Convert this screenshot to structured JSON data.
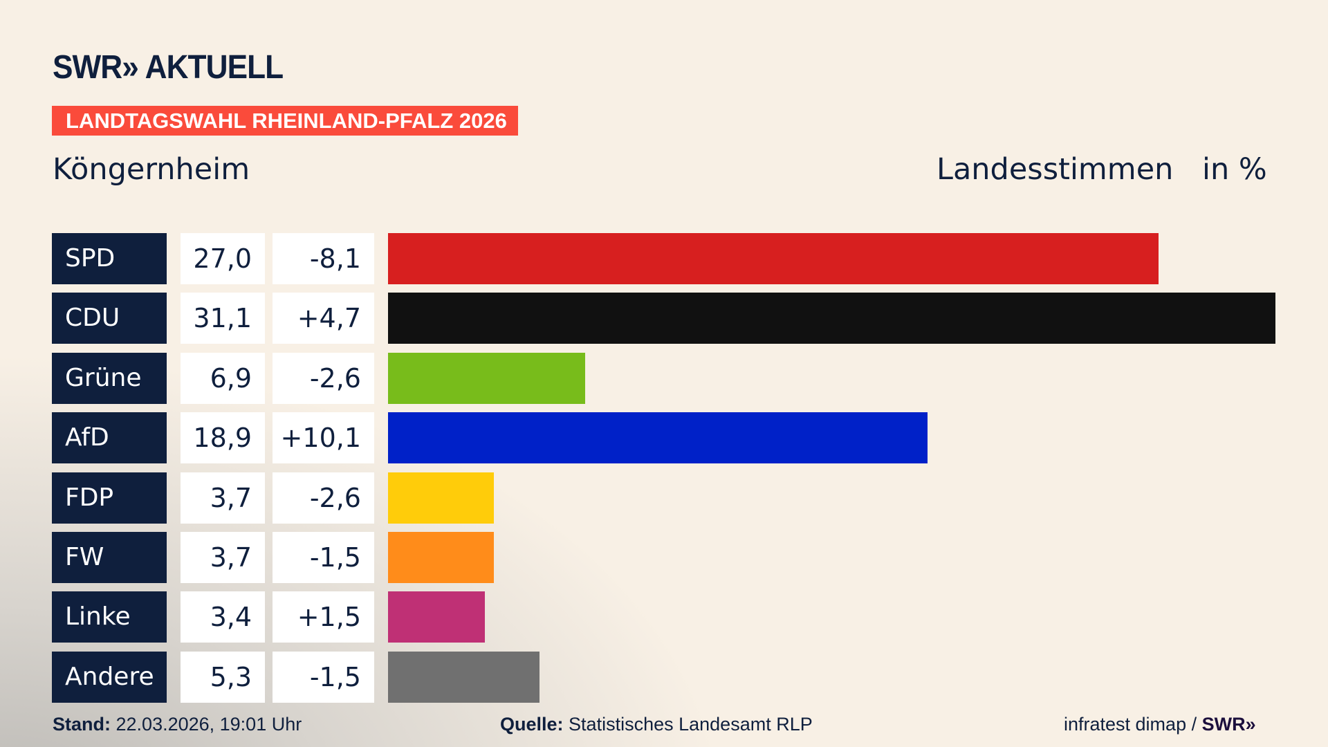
{
  "header": {
    "logo_text": "SWR» AKTUELL",
    "banner": "LANDTAGSWAHL RHEINLAND-PFALZ 2026",
    "place": "Köngernheim",
    "vote_type": "Landesstimmen",
    "unit": "in %"
  },
  "chart_data": {
    "type": "bar",
    "orientation": "horizontal",
    "categories": [
      "SPD",
      "CDU",
      "Grüne",
      "AfD",
      "FDP",
      "FW",
      "Linke",
      "Andere"
    ],
    "values": [
      27.0,
      31.1,
      6.9,
      18.9,
      3.7,
      3.7,
      3.4,
      5.3
    ],
    "value_labels": [
      "27,0",
      "31,1",
      "6,9",
      "18,9",
      "3,7",
      "3,7",
      "3,4",
      "5,3"
    ],
    "change_labels": [
      "-8,1",
      "+4,7",
      "-2,6",
      "+10,1",
      "-2,6",
      "-1,5",
      "+1,5",
      "-1,5"
    ],
    "colors": [
      "#d71f1f",
      "#111111",
      "#78bc1b",
      "#0021c8",
      "#ffcc0a",
      "#ff8c1a",
      "#bf3075",
      "#707070"
    ],
    "xlim": [
      0,
      31.1
    ]
  },
  "footer": {
    "stand_label": "Stand:",
    "stand_value": "22.03.2026, 19:01 Uhr",
    "source_label": "Quelle:",
    "source_value": "Statistisches Landesamt RLP",
    "credit": "infratest dimap /",
    "credit_logo": "SWR»"
  }
}
